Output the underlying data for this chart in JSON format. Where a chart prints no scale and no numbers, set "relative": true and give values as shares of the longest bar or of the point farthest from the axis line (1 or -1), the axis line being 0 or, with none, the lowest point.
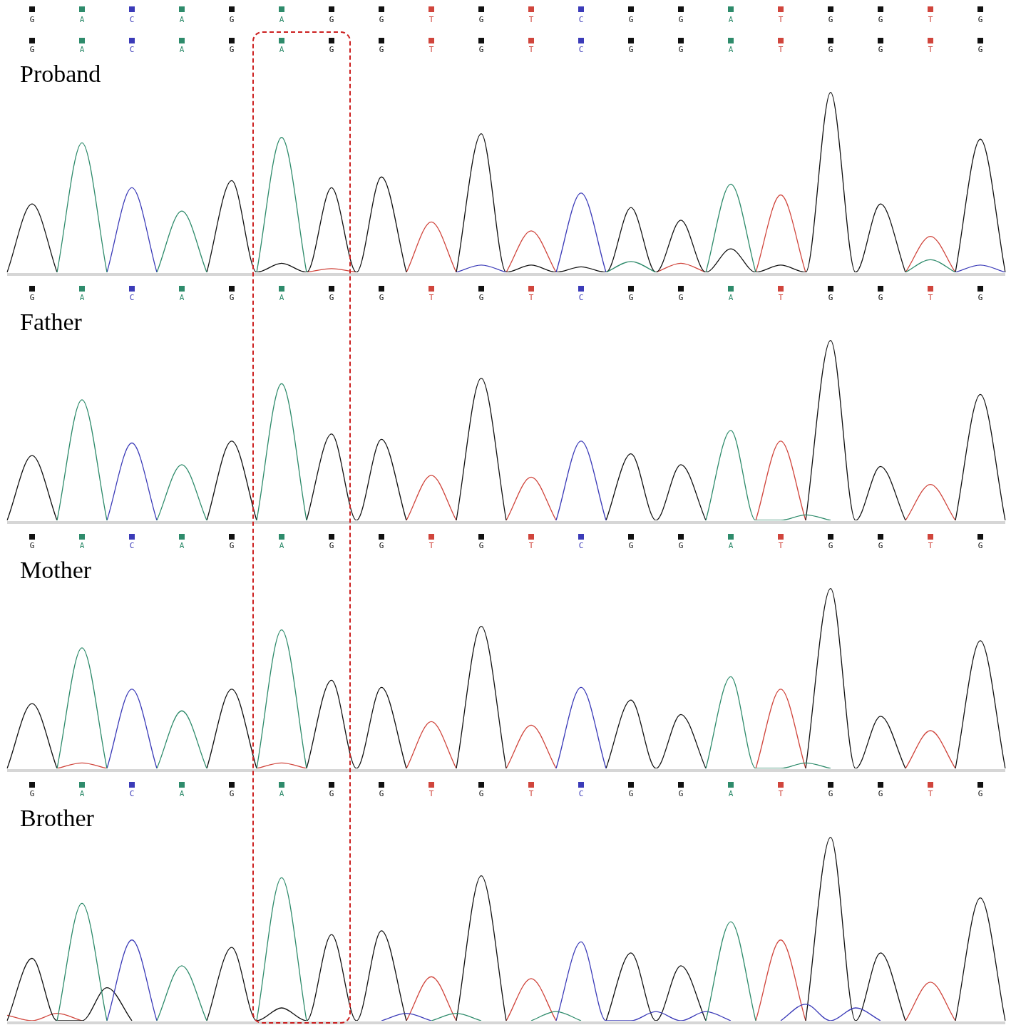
{
  "chart_data": [
    {
      "type": "other",
      "annotations": [
        "G",
        "A",
        "C",
        "A",
        "G",
        "A",
        "G",
        "G",
        "T",
        "G",
        "T",
        "C",
        "G",
        "G",
        "A",
        "T",
        "G",
        "G",
        "T",
        "G"
      ],
      "colors": [
        "#111111",
        "#2e8b6b",
        "#3b3bb8",
        "#2e8b6b",
        "#111111",
        "#2e8b6b",
        "#111111",
        "#111111",
        "#d0453c",
        "#111111",
        "#d0453c",
        "#3b3bb8",
        "#111111",
        "#111111",
        "#2e8b6b",
        "#d0453c",
        "#111111",
        "#111111",
        "#d0453c",
        "#111111"
      ]
    },
    {
      "type": "line",
      "title": "Proband",
      "relative": true,
      "categories": [
        null,
        "G",
        null,
        "A",
        null,
        "C",
        null,
        "A",
        null,
        "G",
        null,
        "A",
        null,
        "G",
        null,
        "G",
        null,
        "T",
        null,
        "G",
        null,
        "T",
        null,
        "C",
        null,
        "G",
        null,
        "G",
        null,
        "A",
        null,
        "T",
        null,
        "G",
        null,
        "G",
        null,
        "T",
        null,
        "G",
        null
      ],
      "series": [
        {
          "color": "#2e8b6b",
          "values": [
            null,
            null,
            0,
            0.72,
            0,
            null,
            0,
            0.34,
            0,
            null,
            0,
            0.75,
            0,
            null,
            null,
            null,
            null,
            null,
            null,
            null,
            null,
            null,
            null,
            null,
            0,
            0.06,
            0,
            null,
            0,
            0.49,
            0,
            null,
            null,
            null,
            null,
            null,
            0,
            0.07,
            0,
            null,
            null
          ]
        },
        {
          "color": "#3b3bb8",
          "values": [
            null,
            null,
            null,
            null,
            0,
            0.47,
            0,
            null,
            null,
            null,
            null,
            null,
            null,
            null,
            null,
            null,
            null,
            null,
            0,
            0.04,
            0,
            null,
            0,
            0.44,
            0,
            null,
            null,
            null,
            null,
            null,
            null,
            null,
            null,
            null,
            null,
            null,
            null,
            null,
            0,
            0.04,
            0
          ]
        },
        {
          "color": "#111111",
          "values": [
            0,
            0.38,
            0,
            null,
            null,
            null,
            null,
            null,
            0,
            0.51,
            0,
            0.05,
            0,
            0.47,
            0,
            0.53,
            0,
            null,
            0,
            0.77,
            0,
            0.04,
            0,
            0.03,
            0,
            0.36,
            0,
            0.29,
            0,
            0.13,
            0,
            0.04,
            0,
            1,
            0,
            0.38,
            0,
            null,
            0,
            0.74,
            0
          ]
        },
        {
          "color": "#d0453c",
          "values": [
            null,
            null,
            null,
            null,
            null,
            null,
            null,
            null,
            null,
            null,
            null,
            null,
            0,
            0.02,
            0,
            null,
            0,
            0.28,
            0,
            null,
            0,
            0.23,
            0,
            null,
            null,
            null,
            0,
            0.05,
            0,
            null,
            0,
            0.43,
            0,
            null,
            null,
            null,
            0,
            0.2,
            0,
            null,
            null
          ]
        }
      ]
    },
    {
      "type": "line",
      "title": "Father",
      "relative": true,
      "categories": [
        null,
        "G",
        null,
        "A",
        null,
        "C",
        null,
        "A",
        null,
        "G",
        null,
        "A",
        null,
        "G",
        null,
        "G",
        null,
        "T",
        null,
        "G",
        null,
        "T",
        null,
        "C",
        null,
        "G",
        null,
        "G",
        null,
        "A",
        null,
        "T",
        null,
        "G",
        null,
        "G",
        null,
        "T",
        null,
        "G",
        null
      ],
      "series": [
        {
          "color": "#2e8b6b",
          "values": [
            null,
            null,
            0,
            0.67,
            0,
            null,
            0,
            0.31,
            0,
            null,
            0,
            0.76,
            0,
            null,
            null,
            null,
            null,
            null,
            null,
            null,
            null,
            null,
            null,
            null,
            null,
            null,
            null,
            null,
            0,
            0.5,
            0,
            0,
            0.03,
            0,
            null,
            null,
            null,
            null,
            null,
            null,
            null
          ]
        },
        {
          "color": "#3b3bb8",
          "values": [
            null,
            null,
            null,
            null,
            0,
            0.43,
            0,
            null,
            null,
            null,
            null,
            null,
            null,
            null,
            null,
            null,
            null,
            null,
            null,
            null,
            null,
            null,
            0,
            0.44,
            0,
            null,
            null,
            null,
            null,
            null,
            null,
            null,
            null,
            null,
            null,
            null,
            null,
            null,
            null,
            null,
            null
          ]
        },
        {
          "color": "#111111",
          "values": [
            0,
            0.36,
            0,
            null,
            null,
            null,
            null,
            null,
            0,
            0.44,
            0,
            null,
            0,
            0.48,
            0,
            0.45,
            0,
            null,
            0,
            0.79,
            0,
            null,
            null,
            null,
            0,
            0.37,
            0,
            0.31,
            0,
            null,
            null,
            null,
            0,
            1,
            0,
            0.3,
            0,
            null,
            0,
            0.7,
            0
          ]
        },
        {
          "color": "#d0453c",
          "values": [
            null,
            null,
            null,
            null,
            null,
            null,
            null,
            null,
            null,
            null,
            null,
            null,
            null,
            null,
            null,
            null,
            0,
            0.25,
            0,
            null,
            0,
            0.24,
            0,
            null,
            null,
            null,
            null,
            null,
            null,
            null,
            0,
            0.44,
            0,
            null,
            null,
            null,
            0,
            0.2,
            0,
            null,
            null
          ]
        }
      ]
    },
    {
      "type": "line",
      "title": "Mother",
      "relative": true,
      "categories": [
        null,
        "G",
        null,
        "A",
        null,
        "C",
        null,
        "A",
        null,
        "G",
        null,
        "A",
        null,
        "G",
        null,
        "G",
        null,
        "T",
        null,
        "G",
        null,
        "T",
        null,
        "C",
        null,
        "G",
        null,
        "G",
        null,
        "A",
        null,
        "T",
        null,
        "G",
        null,
        "G",
        null,
        "T",
        null,
        "G",
        null
      ],
      "series": [
        {
          "color": "#2e8b6b",
          "values": [
            null,
            null,
            0,
            0.67,
            0,
            null,
            0,
            0.32,
            0,
            null,
            0,
            0.77,
            0,
            null,
            null,
            null,
            null,
            null,
            null,
            null,
            null,
            null,
            null,
            null,
            null,
            null,
            null,
            null,
            0,
            0.51,
            0,
            0,
            0.03,
            0,
            null,
            null,
            null,
            null,
            null,
            null,
            null
          ]
        },
        {
          "color": "#3b3bb8",
          "values": [
            null,
            null,
            null,
            null,
            0,
            0.44,
            0,
            null,
            null,
            null,
            null,
            null,
            null,
            null,
            null,
            null,
            null,
            null,
            null,
            null,
            null,
            null,
            0,
            0.45,
            0,
            null,
            null,
            null,
            null,
            null,
            null,
            null,
            null,
            null,
            null,
            null,
            null,
            null,
            null,
            null,
            null
          ]
        },
        {
          "color": "#111111",
          "values": [
            0,
            0.36,
            0,
            null,
            null,
            null,
            null,
            null,
            0,
            0.44,
            0,
            null,
            0,
            0.49,
            0,
            0.45,
            0,
            null,
            0,
            0.79,
            0,
            null,
            null,
            null,
            0,
            0.38,
            0,
            0.3,
            0,
            null,
            null,
            null,
            0,
            1,
            0,
            0.29,
            0,
            null,
            0,
            0.71,
            0
          ]
        },
        {
          "color": "#d0453c",
          "values": [
            null,
            null,
            0,
            0.03,
            0,
            null,
            null,
            null,
            null,
            null,
            0,
            0.03,
            0,
            null,
            null,
            null,
            0,
            0.26,
            0,
            null,
            0,
            0.24,
            0,
            null,
            null,
            null,
            null,
            null,
            null,
            null,
            0,
            0.44,
            0,
            null,
            null,
            null,
            0,
            0.21,
            0,
            null,
            null
          ]
        }
      ]
    },
    {
      "type": "line",
      "title": "Brother",
      "relative": true,
      "categories": [
        null,
        "G",
        null,
        "A",
        null,
        "C",
        null,
        "A",
        null,
        "G",
        null,
        "A",
        null,
        "G",
        null,
        "G",
        null,
        "T",
        null,
        "G",
        null,
        "T",
        null,
        "C",
        null,
        "G",
        null,
        "G",
        null,
        "A",
        null,
        "T",
        null,
        "G",
        null,
        "G",
        null,
        "T",
        null,
        "G",
        null
      ],
      "series": [
        {
          "color": "#2e8b6b",
          "values": [
            null,
            null,
            0,
            0.64,
            0,
            null,
            0,
            0.3,
            0,
            null,
            0,
            0.78,
            0,
            null,
            null,
            null,
            null,
            0,
            0.04,
            0,
            null,
            0,
            0.05,
            0,
            null,
            null,
            null,
            null,
            0,
            0.54,
            0,
            null,
            null,
            null,
            null,
            null,
            null,
            null,
            null,
            null,
            null
          ]
        },
        {
          "color": "#3b3bb8",
          "values": [
            null,
            null,
            null,
            null,
            0,
            0.44,
            0,
            null,
            null,
            null,
            null,
            null,
            null,
            null,
            null,
            0,
            0.04,
            0,
            null,
            null,
            null,
            null,
            0,
            0.43,
            0,
            0,
            0.05,
            0,
            0.05,
            0,
            null,
            0,
            0.09,
            0,
            0.07,
            0,
            null,
            null,
            null,
            null,
            null
          ]
        },
        {
          "color": "#111111",
          "values": [
            0,
            0.34,
            0,
            0,
            0.18,
            0,
            null,
            null,
            0,
            0.4,
            0,
            0.07,
            0,
            0.47,
            0,
            0.49,
            0,
            null,
            0,
            0.79,
            0,
            null,
            null,
            null,
            0,
            0.37,
            0,
            0.3,
            0,
            null,
            null,
            null,
            0,
            1,
            0,
            0.37,
            0,
            null,
            0,
            0.67,
            0
          ]
        },
        {
          "color": "#d0453c",
          "values": [
            0.03,
            0,
            0.04,
            0,
            null,
            null,
            null,
            null,
            null,
            null,
            null,
            null,
            null,
            null,
            null,
            null,
            0,
            0.24,
            0,
            null,
            0,
            0.23,
            0,
            null,
            null,
            null,
            null,
            null,
            null,
            null,
            0,
            0.44,
            0,
            null,
            null,
            null,
            0,
            0.21,
            0,
            null,
            null
          ]
        }
      ]
    }
  ]
}
